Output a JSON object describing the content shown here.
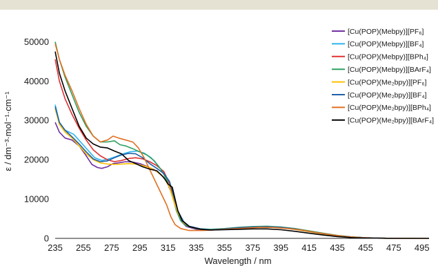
{
  "chart_data": {
    "type": "line",
    "xlabel": "Wavelength / nm",
    "ylabel": "ε / dm⁻³·mol⁻¹·cm⁻¹",
    "xlim": [
      235,
      500
    ],
    "ylim": [
      0,
      52000
    ],
    "x_ticks": [
      235,
      255,
      275,
      295,
      315,
      335,
      355,
      375,
      395,
      415,
      435,
      455,
      475,
      495
    ],
    "y_ticks": [
      0,
      10000,
      20000,
      30000,
      40000,
      50000
    ],
    "grid": false,
    "legend_position": "top-right",
    "series": [
      {
        "name": "[Cu(POP)(Mebpy)][PF₆]",
        "color": "#7030a0",
        "points": [
          [
            235,
            29500
          ],
          [
            238,
            27000
          ],
          [
            242,
            25500
          ],
          [
            247,
            25000
          ],
          [
            252,
            23500
          ],
          [
            257,
            21000
          ],
          [
            261,
            18800
          ],
          [
            265,
            18000
          ],
          [
            268,
            17800
          ],
          [
            272,
            18200
          ],
          [
            276,
            19000
          ],
          [
            280,
            19200
          ],
          [
            285,
            19500
          ],
          [
            290,
            19400
          ],
          [
            295,
            19000
          ],
          [
            300,
            18300
          ],
          [
            305,
            17500
          ],
          [
            310,
            16200
          ],
          [
            314,
            14500
          ],
          [
            318,
            11000
          ],
          [
            321,
            7000
          ],
          [
            324,
            4500
          ],
          [
            328,
            3000
          ],
          [
            335,
            2300
          ],
          [
            345,
            2100
          ],
          [
            355,
            2300
          ],
          [
            365,
            2600
          ],
          [
            375,
            2800
          ],
          [
            385,
            2850
          ],
          [
            395,
            2700
          ],
          [
            405,
            2300
          ],
          [
            415,
            1700
          ],
          [
            425,
            1150
          ],
          [
            435,
            650
          ],
          [
            445,
            320
          ],
          [
            455,
            130
          ],
          [
            470,
            40
          ],
          [
            500,
            0
          ]
        ]
      },
      {
        "name": "[Cu(POP)(Mebpy)][BF₄]",
        "color": "#2eb4ee",
        "points": [
          [
            235,
            34000
          ],
          [
            238,
            29500
          ],
          [
            242,
            27500
          ],
          [
            248,
            26500
          ],
          [
            253,
            24500
          ],
          [
            258,
            22500
          ],
          [
            263,
            20500
          ],
          [
            268,
            19800
          ],
          [
            273,
            20200
          ],
          [
            278,
            20800
          ],
          [
            283,
            21500
          ],
          [
            288,
            22000
          ],
          [
            293,
            22200
          ],
          [
            298,
            21700
          ],
          [
            303,
            20500
          ],
          [
            308,
            18500
          ],
          [
            312,
            16500
          ],
          [
            316,
            13000
          ],
          [
            319,
            9500
          ],
          [
            322,
            6500
          ],
          [
            326,
            4000
          ],
          [
            330,
            3000
          ],
          [
            338,
            2400
          ],
          [
            345,
            2200
          ],
          [
            355,
            2400
          ],
          [
            365,
            2700
          ],
          [
            375,
            2900
          ],
          [
            385,
            3000
          ],
          [
            395,
            2800
          ],
          [
            405,
            2400
          ],
          [
            415,
            1800
          ],
          [
            425,
            1200
          ],
          [
            435,
            700
          ],
          [
            445,
            350
          ],
          [
            455,
            150
          ],
          [
            470,
            40
          ],
          [
            500,
            0
          ]
        ]
      },
      {
        "name": "[Cu(POP)(Mebpy)][BPh₄]",
        "color": "#e03030",
        "points": [
          [
            235,
            45500
          ],
          [
            238,
            40000
          ],
          [
            242,
            35500
          ],
          [
            247,
            31500
          ],
          [
            252,
            28000
          ],
          [
            257,
            25000
          ],
          [
            262,
            22500
          ],
          [
            267,
            21000
          ],
          [
            272,
            20000
          ],
          [
            277,
            19500
          ],
          [
            282,
            19800
          ],
          [
            287,
            20300
          ],
          [
            292,
            20500
          ],
          [
            297,
            20200
          ],
          [
            302,
            19500
          ],
          [
            307,
            18500
          ],
          [
            312,
            17000
          ],
          [
            316,
            14000
          ],
          [
            319,
            10000
          ],
          [
            322,
            6500
          ],
          [
            326,
            4000
          ],
          [
            330,
            3000
          ],
          [
            338,
            2400
          ],
          [
            345,
            2200
          ],
          [
            355,
            2400
          ],
          [
            365,
            2700
          ],
          [
            375,
            2900
          ],
          [
            385,
            2950
          ],
          [
            395,
            2800
          ],
          [
            405,
            2400
          ],
          [
            415,
            1800
          ],
          [
            425,
            1200
          ],
          [
            435,
            700
          ],
          [
            445,
            350
          ],
          [
            455,
            150
          ],
          [
            470,
            40
          ],
          [
            500,
            0
          ]
        ]
      },
      {
        "name": "[Cu(POP)(Mebpy)][BArF₄]",
        "color": "#2ea060",
        "points": [
          [
            235,
            50000
          ],
          [
            238,
            45500
          ],
          [
            242,
            41000
          ],
          [
            247,
            36500
          ],
          [
            252,
            32000
          ],
          [
            257,
            28500
          ],
          [
            262,
            26000
          ],
          [
            267,
            24500
          ],
          [
            272,
            24500
          ],
          [
            277,
            24800
          ],
          [
            281,
            23800
          ],
          [
            285,
            23500
          ],
          [
            290,
            22800
          ],
          [
            295,
            22000
          ],
          [
            300,
            21200
          ],
          [
            305,
            19800
          ],
          [
            310,
            17500
          ],
          [
            314,
            15000
          ],
          [
            318,
            11000
          ],
          [
            321,
            7000
          ],
          [
            324,
            4500
          ],
          [
            328,
            3200
          ],
          [
            335,
            2500
          ],
          [
            345,
            2300
          ],
          [
            355,
            2500
          ],
          [
            365,
            2800
          ],
          [
            375,
            3000
          ],
          [
            385,
            3100
          ],
          [
            395,
            2900
          ],
          [
            405,
            2500
          ],
          [
            415,
            1900
          ],
          [
            425,
            1300
          ],
          [
            435,
            750
          ],
          [
            445,
            380
          ],
          [
            455,
            160
          ],
          [
            470,
            40
          ],
          [
            500,
            0
          ]
        ]
      },
      {
        "name": "[Cu(POP)(Me₂bpy)][PF₆]",
        "color": "#ffc000",
        "points": [
          [
            235,
            33000
          ],
          [
            238,
            29000
          ],
          [
            242,
            27000
          ],
          [
            247,
            25500
          ],
          [
            252,
            23500
          ],
          [
            257,
            21500
          ],
          [
            262,
            20000
          ],
          [
            267,
            19200
          ],
          [
            272,
            18900
          ],
          [
            277,
            18800
          ],
          [
            282,
            18900
          ],
          [
            287,
            19000
          ],
          [
            292,
            18900
          ],
          [
            297,
            18500
          ],
          [
            302,
            18000
          ],
          [
            307,
            17000
          ],
          [
            312,
            15500
          ],
          [
            316,
            13000
          ],
          [
            319,
            9500
          ],
          [
            322,
            6500
          ],
          [
            326,
            4000
          ],
          [
            330,
            3000
          ],
          [
            338,
            2300
          ],
          [
            345,
            2100
          ],
          [
            355,
            2300
          ],
          [
            365,
            2600
          ],
          [
            375,
            2800
          ],
          [
            385,
            2850
          ],
          [
            395,
            2700
          ],
          [
            405,
            2300
          ],
          [
            415,
            1700
          ],
          [
            425,
            1100
          ],
          [
            435,
            650
          ],
          [
            445,
            320
          ],
          [
            455,
            130
          ],
          [
            470,
            40
          ],
          [
            500,
            0
          ]
        ]
      },
      {
        "name": "[Cu(POP)(Me₂bpy)][BF₄]",
        "color": "#1f5fa6",
        "points": [
          [
            235,
            33500
          ],
          [
            238,
            29500
          ],
          [
            242,
            27500
          ],
          [
            247,
            25800
          ],
          [
            252,
            24000
          ],
          [
            257,
            22000
          ],
          [
            262,
            20200
          ],
          [
            267,
            19500
          ],
          [
            272,
            19700
          ],
          [
            277,
            20500
          ],
          [
            282,
            21200
          ],
          [
            287,
            21600
          ],
          [
            292,
            21500
          ],
          [
            297,
            20500
          ],
          [
            302,
            19000
          ],
          [
            307,
            17800
          ],
          [
            312,
            16500
          ],
          [
            316,
            14500
          ],
          [
            319,
            11000
          ],
          [
            322,
            7000
          ],
          [
            326,
            4300
          ],
          [
            330,
            3100
          ],
          [
            338,
            2400
          ],
          [
            345,
            2200
          ],
          [
            355,
            2400
          ],
          [
            365,
            2700
          ],
          [
            375,
            2900
          ],
          [
            385,
            2950
          ],
          [
            395,
            2800
          ],
          [
            405,
            2400
          ],
          [
            415,
            1800
          ],
          [
            425,
            1200
          ],
          [
            435,
            700
          ],
          [
            445,
            350
          ],
          [
            455,
            150
          ],
          [
            470,
            40
          ],
          [
            500,
            0
          ]
        ]
      },
      {
        "name": "[Cu(POP)(Me₂bpy)][BPh₄]",
        "color": "#e07020",
        "points": [
          [
            235,
            49500
          ],
          [
            238,
            45500
          ],
          [
            242,
            41500
          ],
          [
            247,
            37500
          ],
          [
            252,
            33000
          ],
          [
            257,
            29000
          ],
          [
            262,
            26000
          ],
          [
            267,
            24500
          ],
          [
            272,
            25000
          ],
          [
            276,
            26000
          ],
          [
            280,
            25500
          ],
          [
            285,
            25000
          ],
          [
            290,
            24500
          ],
          [
            294,
            23000
          ],
          [
            298,
            20500
          ],
          [
            302,
            17500
          ],
          [
            306,
            14500
          ],
          [
            310,
            11500
          ],
          [
            314,
            8500
          ],
          [
            317,
            5500
          ],
          [
            320,
            3500
          ],
          [
            324,
            2500
          ],
          [
            330,
            2000
          ],
          [
            340,
            2000
          ],
          [
            350,
            2200
          ],
          [
            360,
            2400
          ],
          [
            370,
            2600
          ],
          [
            380,
            2800
          ],
          [
            390,
            2750
          ],
          [
            400,
            2500
          ],
          [
            410,
            2100
          ],
          [
            420,
            1500
          ],
          [
            430,
            950
          ],
          [
            440,
            500
          ],
          [
            450,
            220
          ],
          [
            460,
            90
          ],
          [
            475,
            20
          ],
          [
            500,
            0
          ]
        ]
      },
      {
        "name": "[Cu(POP)(Me₂bpy)][BArF₄]",
        "color": "#000000",
        "points": [
          [
            235,
            47500
          ],
          [
            238,
            42000
          ],
          [
            242,
            37500
          ],
          [
            247,
            33000
          ],
          [
            252,
            28500
          ],
          [
            257,
            25500
          ],
          [
            262,
            24000
          ],
          [
            267,
            23200
          ],
          [
            272,
            23000
          ],
          [
            277,
            22200
          ],
          [
            282,
            21500
          ],
          [
            287,
            19800
          ],
          [
            292,
            19000
          ],
          [
            297,
            18200
          ],
          [
            302,
            17600
          ],
          [
            307,
            17200
          ],
          [
            312,
            15500
          ],
          [
            315,
            13800
          ],
          [
            318,
            13000
          ],
          [
            320,
            10000
          ],
          [
            322,
            7000
          ],
          [
            325,
            4500
          ],
          [
            330,
            3000
          ],
          [
            338,
            2300
          ],
          [
            345,
            2100
          ],
          [
            355,
            2200
          ],
          [
            365,
            2300
          ],
          [
            375,
            2400
          ],
          [
            385,
            2400
          ],
          [
            395,
            2200
          ],
          [
            405,
            1800
          ],
          [
            415,
            1300
          ],
          [
            425,
            850
          ],
          [
            435,
            450
          ],
          [
            445,
            200
          ],
          [
            455,
            80
          ],
          [
            470,
            20
          ],
          [
            500,
            0
          ]
        ]
      }
    ]
  }
}
